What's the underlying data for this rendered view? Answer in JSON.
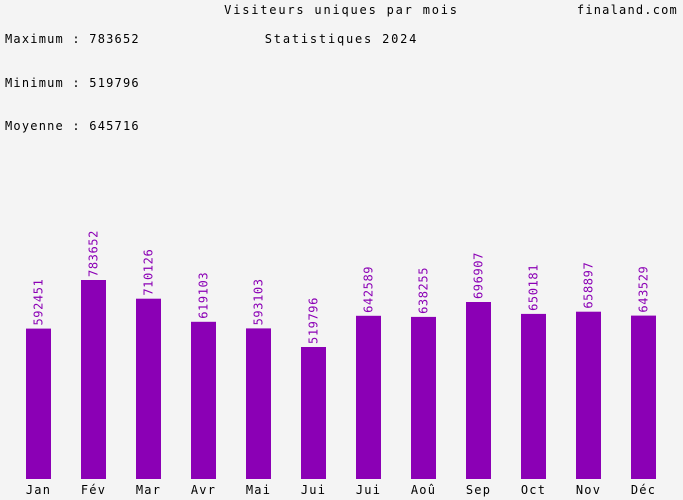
{
  "header": {
    "stats": [
      {
        "label": "Maximum",
        "value": "783652"
      },
      {
        "label": "Minimum",
        "value": "519796"
      },
      {
        "label": "Moyenne",
        "value": "645716"
      }
    ],
    "title": "Visiteurs uniques par mois",
    "subtitle": "Statistiques 2024",
    "site": "finaland.com"
  },
  "colors": {
    "bar": "#8b00b5",
    "label": "#8b00b5",
    "background": "#f4f4f4",
    "axis_text": "#000000"
  },
  "chart_data": {
    "type": "bar",
    "title": "Visiteurs uniques par mois",
    "subtitle": "Statistiques 2024",
    "categories": [
      "Jan",
      "Fév",
      "Mar",
      "Avr",
      "Mai",
      "Jui",
      "Jui",
      "Aoû",
      "Sep",
      "Oct",
      "Nov",
      "Déc"
    ],
    "values": [
      592451,
      783652,
      710126,
      619103,
      593103,
      519796,
      642589,
      638255,
      696907,
      650181,
      658897,
      643529
    ],
    "ylim": [
      0,
      783652
    ],
    "grid": false,
    "legend": "none"
  }
}
